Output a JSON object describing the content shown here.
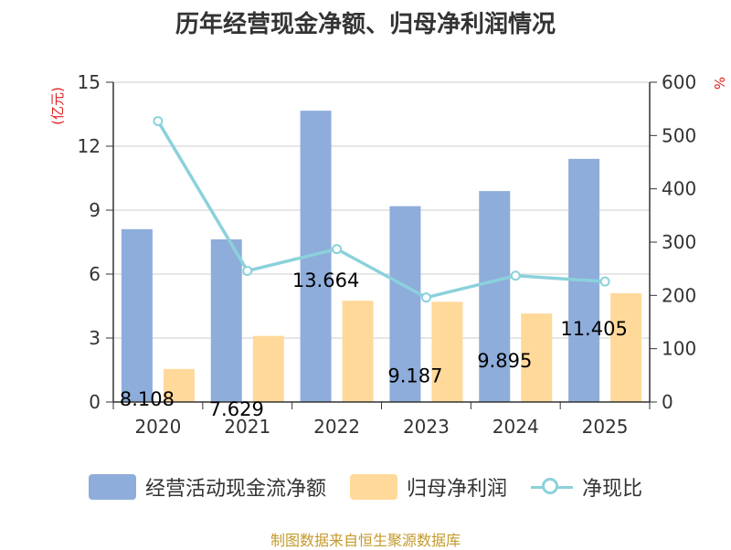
{
  "chart_data": {
    "type": "bar",
    "title": "历年经营现金净额、归母净利润情况",
    "categories": [
      "2020",
      "2021",
      "2022",
      "2023",
      "2024",
      "2025"
    ],
    "left_axis": {
      "unit": "(亿元)",
      "ylim": [
        0,
        15
      ],
      "ticks": [
        "0",
        "3",
        "6",
        "9",
        "12",
        "15"
      ]
    },
    "right_axis": {
      "unit": "%",
      "ylim": [
        0,
        600
      ],
      "ticks": [
        "0",
        "100",
        "200",
        "300",
        "400",
        "500",
        "600"
      ]
    },
    "series": [
      {
        "name": "经营活动现金流净额",
        "type": "bar",
        "axis": "left",
        "color": "#8EADDB",
        "values": [
          8.108,
          7.629,
          13.664,
          9.187,
          9.895,
          11.405
        ],
        "labels": [
          "8.108",
          "7.629",
          "13.664",
          "9.187",
          "9.895",
          "11.405"
        ]
      },
      {
        "name": "归母净利润",
        "type": "bar",
        "axis": "left",
        "color": "#FFD99A",
        "values": [
          1.55,
          3.1,
          4.75,
          4.7,
          4.15,
          5.1
        ]
      },
      {
        "name": "净现比",
        "type": "line",
        "axis": "right",
        "color": "#8BD1DB",
        "values": [
          527,
          246,
          287,
          196,
          237,
          226
        ]
      }
    ],
    "grid": true,
    "legend": "bottom"
  },
  "axis_color": "#333333",
  "grid_color": "#cccccc",
  "unit_color": "#E02020",
  "source": {
    "text": "制图数据来自恒生聚源数据库",
    "color": "#C49A2C"
  }
}
